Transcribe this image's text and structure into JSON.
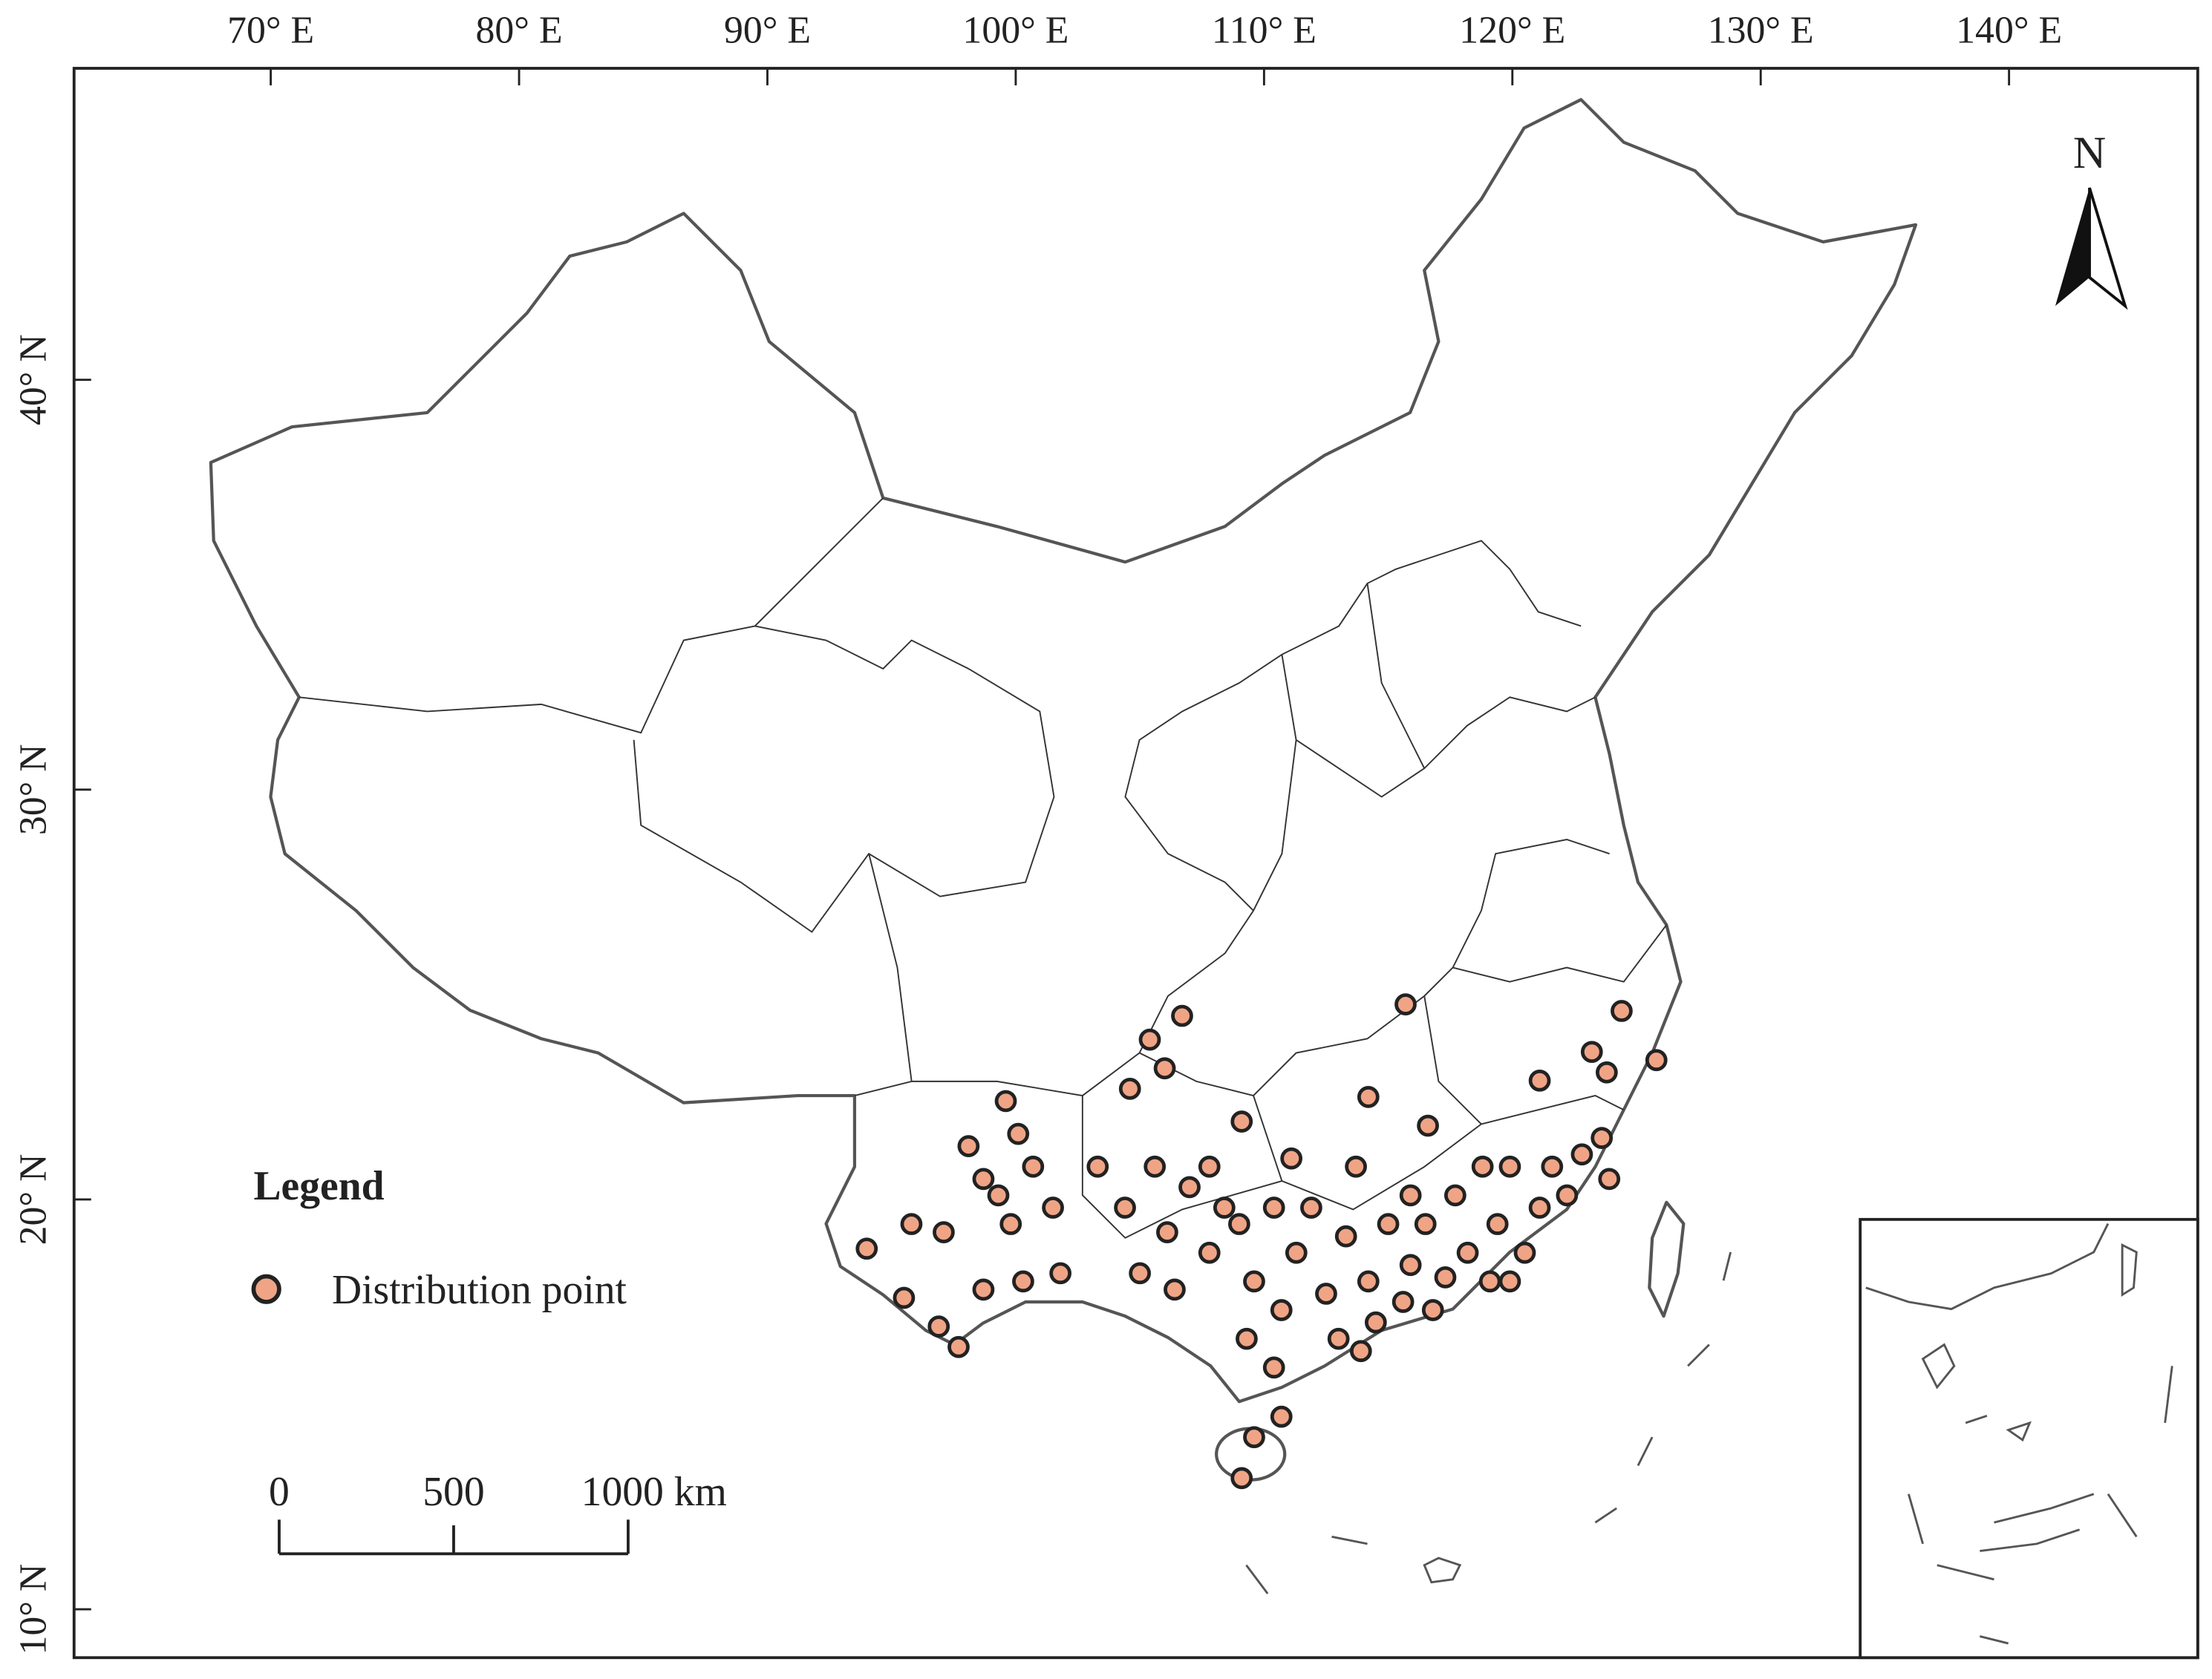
{
  "map": {
    "type": "point-map",
    "xlim": [
      62.08,
      147.6
    ],
    "ylim": [
      8.82,
      47.6
    ],
    "xticks": [
      {
        "value": 70,
        "label": "70° E"
      },
      {
        "value": 80,
        "label": "80° E"
      },
      {
        "value": 90,
        "label": "90° E"
      },
      {
        "value": 100,
        "label": "100° E"
      },
      {
        "value": 110,
        "label": "110° E"
      },
      {
        "value": 120,
        "label": "120° E"
      },
      {
        "value": 130,
        "label": "130° E"
      },
      {
        "value": 140,
        "label": "140° E"
      }
    ],
    "yticks": [
      {
        "value": 10,
        "label": "10° N"
      },
      {
        "value": 20,
        "label": "20° N"
      },
      {
        "value": 30,
        "label": "30° N"
      },
      {
        "value": 40,
        "label": "40° N"
      }
    ],
    "north": "N",
    "legend": {
      "title": "Legend",
      "label": "Distribution point"
    },
    "scale_bar": {
      "ticks": [
        0,
        500,
        {
          "value": 1000,
          "label": "1000 km"
        }
      ]
    },
    "color": "#f0a486",
    "lon": [
      115.7,
      106.7,
      105.4,
      106.0,
      104.6,
      124.4,
      123.2,
      123.8,
      125.8,
      121.1,
      114.2,
      109.1,
      116.6,
      99.6,
      98.1,
      100.1,
      94.0,
      95.8,
      96.9,
      97.7,
      95.5,
      97.1,
      98.7,
      99.8,
      101.5,
      100.3,
      101.8,
      103.3,
      104.4,
      105.6,
      107.0,
      105.0,
      106.4,
      107.8,
      109.0,
      109.6,
      110.7,
      109.3,
      110.4,
      109.6,
      109.1,
      110.7,
      111.3,
      112.5,
      113.3,
      114.2,
      115.0,
      115.9,
      116.8,
      116.5,
      117.7,
      118.2,
      119.4,
      119.1,
      120.5,
      121.1,
      121.6,
      122.8,
      123.6,
      123.9,
      122.2,
      119.9,
      118.8,
      114.5,
      113.0,
      115.6,
      117.3,
      113.7,
      111.1,
      119.9,
      115.9,
      113.9,
      106.1,
      99.3,
      100.7,
      98.7,
      107.8,
      108.4,
      110.4,
      111.9
    ],
    "lat": [
      24.76,
      24.48,
      23.9,
      23.2,
      22.7,
      24.6,
      23.6,
      23.1,
      23.4,
      22.9,
      22.5,
      21.9,
      21.8,
      22.4,
      21.3,
      21.6,
      18.8,
      19.4,
      16.9,
      16.4,
      17.6,
      19.2,
      17.8,
      19.4,
      19.8,
      18.0,
      18.2,
      20.8,
      19.8,
      20.8,
      20.3,
      18.2,
      17.8,
      18.7,
      19.4,
      18.0,
      17.3,
      16.6,
      15.9,
      14.2,
      13.2,
      14.7,
      18.7,
      17.7,
      19.1,
      18.0,
      19.4,
      18.4,
      17.3,
      19.4,
      20.1,
      18.7,
      19.4,
      18.0,
      18.7,
      19.8,
      20.8,
      21.1,
      21.5,
      20.5,
      20.1,
      20.8,
      20.8,
      17.0,
      16.6,
      17.5,
      18.1,
      20.8,
      21.0,
      18.0,
      20.1,
      16.3,
      19.2,
      20.1,
      20.8,
      20.5,
      20.8,
      19.8,
      19.8,
      19.8
    ]
  }
}
